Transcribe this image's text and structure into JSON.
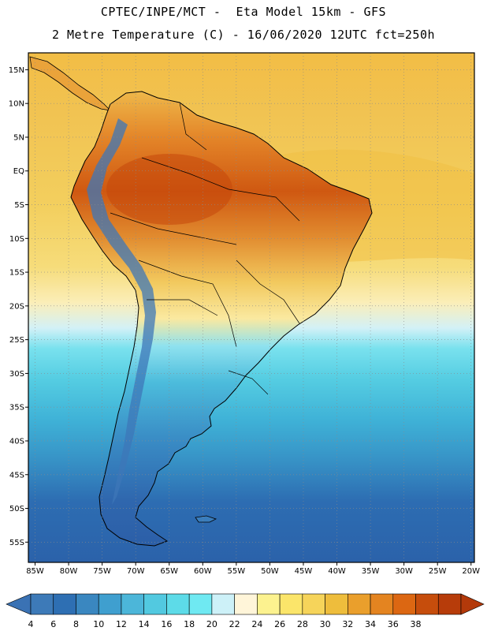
{
  "header": {
    "line1": "CPTEC/INPE/MCT -  Eta Model 15km - GFS",
    "line2": "2 Metre Temperature (C) - 16/06/2020 12UTC fct=250h"
  },
  "map": {
    "lat_labels": [
      "15N",
      "10N",
      "5N",
      "EQ",
      "5S",
      "10S",
      "15S",
      "20S",
      "25S",
      "30S",
      "35S",
      "40S",
      "45S",
      "50S",
      "55S"
    ],
    "lon_labels": [
      "85W",
      "80W",
      "75W",
      "70W",
      "65W",
      "60W",
      "55W",
      "50W",
      "45W",
      "40W",
      "35W",
      "30W",
      "25W",
      "20W"
    ],
    "lat_values": [
      15,
      10,
      5,
      0,
      -5,
      -10,
      -15,
      -20,
      -25,
      -30,
      -35,
      -40,
      -45,
      -50,
      -55
    ],
    "lon_values": [
      -85,
      -80,
      -75,
      -70,
      -65,
      -60,
      -55,
      -50,
      -45,
      -40,
      -35,
      -30,
      -25,
      -20
    ],
    "lat_range": [
      -58,
      17.5
    ],
    "lon_range": [
      -86,
      -19.5
    ]
  },
  "colorbar": {
    "labels": [
      "4",
      "6",
      "8",
      "10",
      "12",
      "14",
      "16",
      "18",
      "20",
      "22",
      "24",
      "26",
      "28",
      "30",
      "32",
      "34",
      "36",
      "38"
    ],
    "colors": [
      "#3d7ab8",
      "#2e6fb3",
      "#3a87c0",
      "#3f9fcf",
      "#4cb6d9",
      "#52c9e0",
      "#5ddbe8",
      "#6fe9f2",
      "#cdf1f8",
      "#fff5d9",
      "#fcf28f",
      "#fbe56a",
      "#f6d45a",
      "#eebd3c",
      "#ea9f2c",
      "#e48420",
      "#dc6712",
      "#c64d0c",
      "#b73c0a"
    ],
    "under_color": "#3a72b4",
    "over_color": "#b3390a"
  }
}
